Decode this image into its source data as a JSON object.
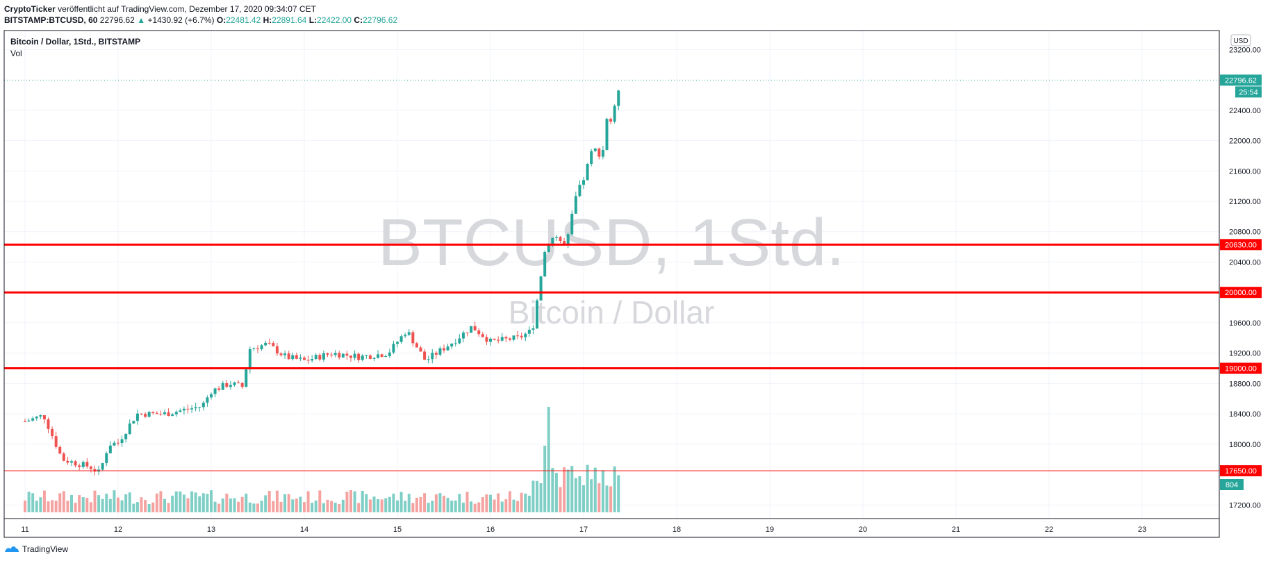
{
  "header": {
    "author": "CryptoTicker",
    "published_text": "veröffentlicht auf TradingView.com, Dezember 17, 2020 09:34:07 CET",
    "symbol": "BITSTAMP:BTCUSD, 60",
    "last_price": "22796.62",
    "change": "+1430.92 (+6.7%)",
    "o_label": "O:",
    "o_value": "22481.42",
    "h_label": "H:",
    "h_value": "22891.64",
    "l_label": "L:",
    "l_value": "22422.00",
    "c_label": "C:",
    "c_value": "22796.62"
  },
  "legend": {
    "title": "Bitcoin / Dollar, 1Std., BITSTAMP",
    "vol_label": "Vol"
  },
  "watermark": {
    "main": "BTCUSD, 1Std.",
    "sub": "Bitcoin / Dollar"
  },
  "price_axis": {
    "currency": "USD",
    "ticks": [
      "23200.00",
      "22400.00",
      "22000.00",
      "21600.00",
      "21200.00",
      "20800.00",
      "20400.00",
      "19600.00",
      "19200.00",
      "18800.00",
      "18400.00",
      "18000.00",
      "17200.00"
    ],
    "last_label": "22796.62",
    "countdown": "25:54",
    "volume_label": "804"
  },
  "time_axis": {
    "ticks": [
      "11",
      "12",
      "13",
      "14",
      "15",
      "16",
      "17",
      "18",
      "19",
      "20",
      "21",
      "22",
      "23"
    ]
  },
  "footer": {
    "brand": "TradingView"
  },
  "colors": {
    "up": "#26a69a",
    "down": "#ef5350",
    "vol_up": "#7fcfc6",
    "vol_down": "#f5a3a1",
    "level": "#ff0000",
    "grid": "#f0f3fa",
    "watermark": "#d6d8dc"
  },
  "chart_data": {
    "type": "candlestick",
    "title": "Bitcoin / Dollar, 1Std., BITSTAMP",
    "ylim": [
      17020,
      23450
    ],
    "x_days": [
      "11",
      "12",
      "13",
      "14",
      "15",
      "16",
      "17",
      "18",
      "19",
      "20",
      "21",
      "22",
      "23"
    ],
    "last_price": 22796.62,
    "horizontal_levels": [
      {
        "value": 20630,
        "label": "20630.00"
      },
      {
        "value": 20000,
        "label": "20000.00"
      },
      {
        "value": 19000,
        "label": "19000.00"
      },
      {
        "value": 17650,
        "label": "17650.00"
      }
    ],
    "close_path": [
      [
        11.0,
        18300
      ],
      [
        11.2,
        18380
      ],
      [
        11.4,
        17800
      ],
      [
        11.7,
        17700
      ],
      [
        11.8,
        17620
      ],
      [
        11.9,
        18000
      ],
      [
        12.0,
        18020
      ],
      [
        12.2,
        18400
      ],
      [
        12.5,
        18400
      ],
      [
        12.7,
        18450
      ],
      [
        12.9,
        18500
      ],
      [
        13.0,
        18700
      ],
      [
        13.2,
        18800
      ],
      [
        13.35,
        18750
      ],
      [
        13.4,
        19250
      ],
      [
        13.6,
        19320
      ],
      [
        13.8,
        19150
      ],
      [
        14.0,
        19100
      ],
      [
        14.3,
        19200
      ],
      [
        14.6,
        19150
      ],
      [
        14.9,
        19200
      ],
      [
        15.1,
        19500
      ],
      [
        15.3,
        19100
      ],
      [
        15.6,
        19350
      ],
      [
        15.8,
        19550
      ],
      [
        16.0,
        19350
      ],
      [
        16.3,
        19400
      ],
      [
        16.45,
        19500
      ],
      [
        16.5,
        19900
      ],
      [
        16.55,
        20300
      ],
      [
        16.6,
        20650
      ],
      [
        16.7,
        20750
      ],
      [
        16.8,
        20600
      ],
      [
        16.85,
        20800
      ],
      [
        16.9,
        21200
      ],
      [
        17.0,
        21500
      ],
      [
        17.1,
        21900
      ],
      [
        17.2,
        21800
      ],
      [
        17.25,
        22300
      ],
      [
        17.3,
        22250
      ],
      [
        17.35,
        22500
      ],
      [
        17.39,
        22796.62
      ]
    ],
    "volume": {
      "spike_day": 16.63,
      "spike_value": 1900,
      "last_value": 804
    }
  }
}
